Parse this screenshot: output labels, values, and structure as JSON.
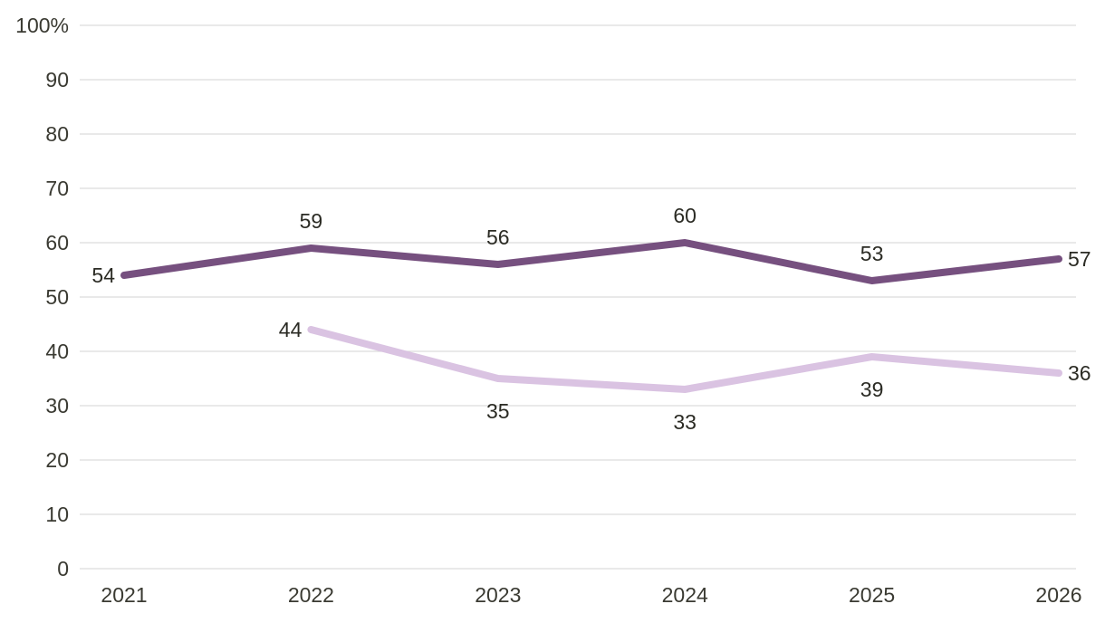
{
  "chart_data": {
    "type": "line",
    "x": [
      "2021",
      "2022",
      "2023",
      "2024",
      "2025",
      "2026"
    ],
    "ylim": [
      0,
      100
    ],
    "yticks": [
      "0",
      "10",
      "20",
      "30",
      "40",
      "50",
      "60",
      "70",
      "80",
      "90",
      "100%"
    ],
    "grid": true,
    "legend": "none",
    "series": [
      {
        "values": [
          54,
          59,
          56,
          60,
          53,
          57
        ],
        "color": "#76507f",
        "label_position": [
          "left",
          "above",
          "above",
          "above",
          "above",
          "right"
        ]
      },
      {
        "values": [
          null,
          44,
          35,
          33,
          39,
          36
        ],
        "color": "#dac3e2",
        "label_position": [
          null,
          "left",
          "below",
          "below",
          "below",
          "right"
        ]
      }
    ]
  }
}
